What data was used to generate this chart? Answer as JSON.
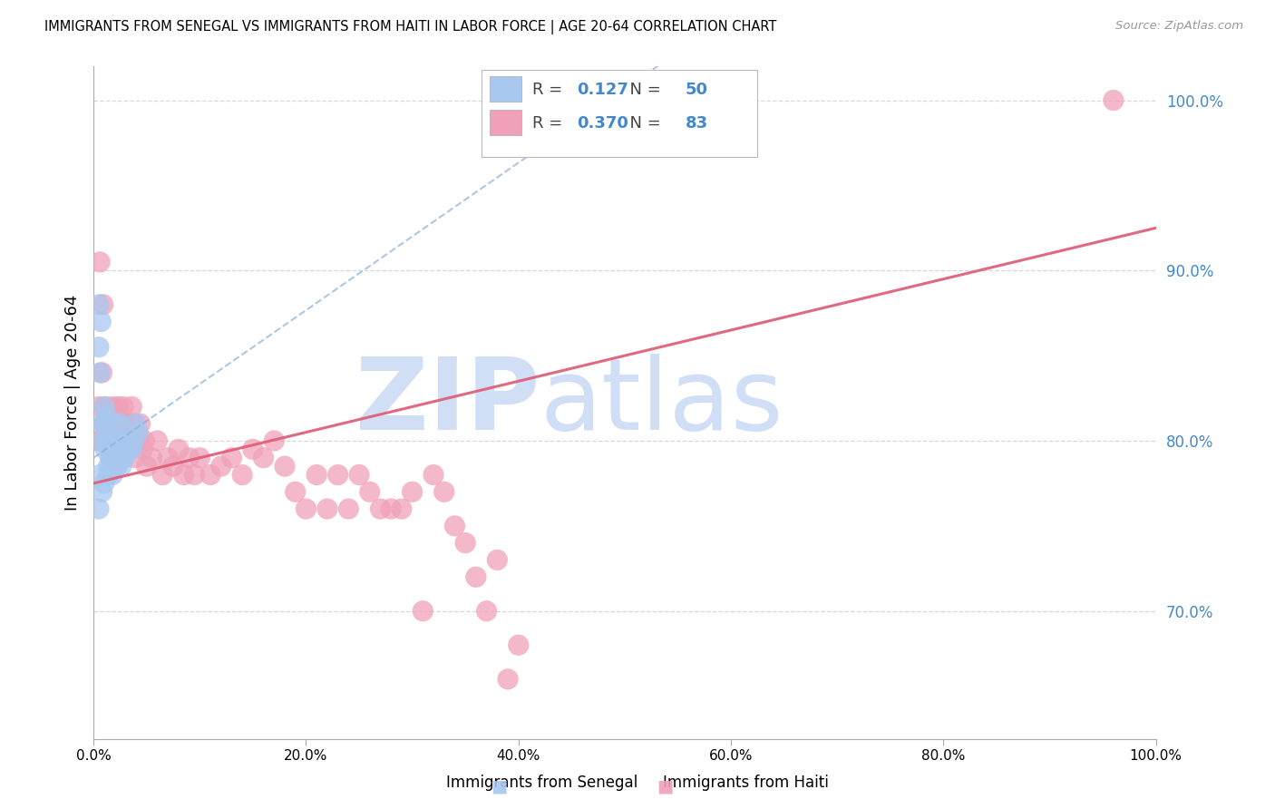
{
  "title": "IMMIGRANTS FROM SENEGAL VS IMMIGRANTS FROM HAITI IN LABOR FORCE | AGE 20-64 CORRELATION CHART",
  "source": "Source: ZipAtlas.com",
  "ylabel": "In Labor Force | Age 20-64",
  "legend_label1": "Immigrants from Senegal",
  "legend_label2": "Immigrants from Haiti",
  "R1": 0.127,
  "N1": 50,
  "R2": 0.37,
  "N2": 83,
  "color_senegal": "#a8c8f0",
  "color_haiti": "#f0a0b8",
  "color_senegal_line": "#8ab0d8",
  "color_haiti_line": "#e0607a",
  "color_right_axis": "#4488cc",
  "xlim": [
    0.0,
    1.0
  ],
  "ylim": [
    0.625,
    1.02
  ],
  "yticks_right": [
    0.7,
    0.8,
    0.9,
    1.0
  ],
  "ytick_labels_right": [
    "70.0%",
    "80.0%",
    "90.0%",
    "100.0%"
  ],
  "xticks": [
    0.0,
    0.2,
    0.4,
    0.6,
    0.8,
    1.0
  ],
  "xtick_labels": [
    "0.0%",
    "20.0%",
    "40.0%",
    "60.0%",
    "80.0%",
    "100.0%"
  ],
  "senegal_x": [
    0.005,
    0.005,
    0.006,
    0.007,
    0.008,
    0.009,
    0.01,
    0.01,
    0.011,
    0.012,
    0.013,
    0.014,
    0.015,
    0.016,
    0.017,
    0.018,
    0.019,
    0.02,
    0.02,
    0.021,
    0.022,
    0.023,
    0.024,
    0.025,
    0.026,
    0.027,
    0.028,
    0.029,
    0.03,
    0.031,
    0.005,
    0.006,
    0.008,
    0.01,
    0.012,
    0.014,
    0.016,
    0.018,
    0.02,
    0.022,
    0.024,
    0.026,
    0.028,
    0.03,
    0.032,
    0.034,
    0.036,
    0.038,
    0.04,
    0.042
  ],
  "senegal_y": [
    0.88,
    0.855,
    0.84,
    0.87,
    0.81,
    0.8,
    0.82,
    0.81,
    0.795,
    0.815,
    0.8,
    0.785,
    0.795,
    0.79,
    0.8,
    0.785,
    0.79,
    0.8,
    0.81,
    0.79,
    0.785,
    0.8,
    0.79,
    0.81,
    0.785,
    0.8,
    0.795,
    0.79,
    0.8,
    0.795,
    0.76,
    0.78,
    0.77,
    0.775,
    0.8,
    0.78,
    0.79,
    0.78,
    0.795,
    0.785,
    0.79,
    0.8,
    0.79,
    0.8,
    0.795,
    0.8,
    0.795,
    0.8,
    0.81,
    0.805
  ],
  "haiti_x": [
    0.004,
    0.005,
    0.006,
    0.007,
    0.008,
    0.009,
    0.01,
    0.011,
    0.012,
    0.013,
    0.014,
    0.015,
    0.016,
    0.017,
    0.018,
    0.019,
    0.02,
    0.021,
    0.022,
    0.023,
    0.024,
    0.025,
    0.026,
    0.027,
    0.028,
    0.029,
    0.03,
    0.031,
    0.032,
    0.033,
    0.034,
    0.035,
    0.036,
    0.037,
    0.038,
    0.039,
    0.04,
    0.042,
    0.044,
    0.046,
    0.048,
    0.05,
    0.055,
    0.06,
    0.065,
    0.07,
    0.075,
    0.08,
    0.085,
    0.09,
    0.095,
    0.1,
    0.11,
    0.12,
    0.13,
    0.14,
    0.15,
    0.16,
    0.17,
    0.18,
    0.19,
    0.2,
    0.21,
    0.22,
    0.23,
    0.24,
    0.25,
    0.26,
    0.27,
    0.28,
    0.29,
    0.3,
    0.31,
    0.32,
    0.33,
    0.34,
    0.35,
    0.36,
    0.37,
    0.38,
    0.39,
    0.4,
    0.96
  ],
  "haiti_y": [
    0.8,
    0.82,
    0.905,
    0.8,
    0.84,
    0.88,
    0.81,
    0.82,
    0.8,
    0.81,
    0.8,
    0.795,
    0.81,
    0.8,
    0.82,
    0.79,
    0.8,
    0.81,
    0.8,
    0.82,
    0.8,
    0.795,
    0.81,
    0.8,
    0.82,
    0.8,
    0.81,
    0.8,
    0.795,
    0.8,
    0.81,
    0.8,
    0.82,
    0.8,
    0.81,
    0.79,
    0.8,
    0.8,
    0.81,
    0.795,
    0.8,
    0.785,
    0.79,
    0.8,
    0.78,
    0.79,
    0.785,
    0.795,
    0.78,
    0.79,
    0.78,
    0.79,
    0.78,
    0.785,
    0.79,
    0.78,
    0.795,
    0.79,
    0.8,
    0.785,
    0.77,
    0.76,
    0.78,
    0.76,
    0.78,
    0.76,
    0.78,
    0.77,
    0.76,
    0.76,
    0.76,
    0.77,
    0.7,
    0.78,
    0.77,
    0.75,
    0.74,
    0.72,
    0.7,
    0.73,
    0.66,
    0.68,
    1.0
  ],
  "watermark_zip": "ZIP",
  "watermark_atlas": "atlas",
  "watermark_color": "#d0dff5",
  "background_color": "#ffffff",
  "grid_color": "#d8d8d8"
}
